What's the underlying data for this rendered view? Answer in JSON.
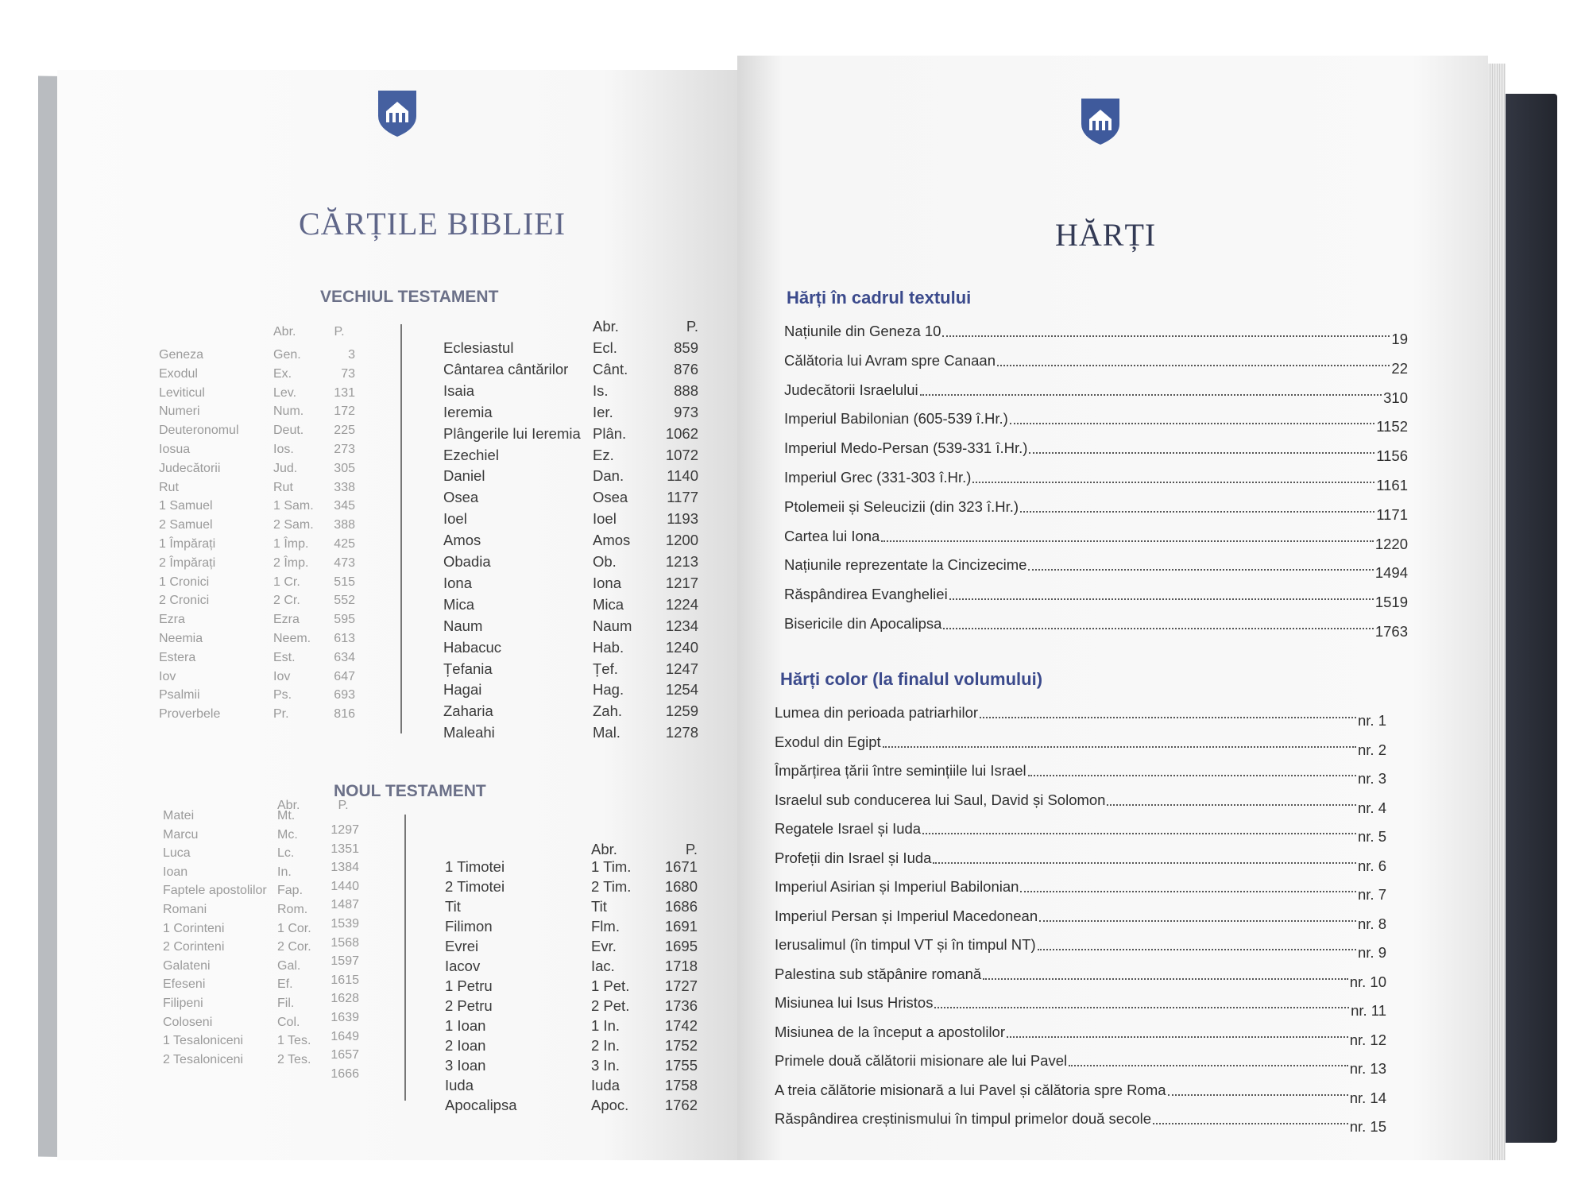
{
  "left_page": {
    "title": "CĂRȚILE BIBLIEI",
    "old_testament": {
      "heading": "VECHIUL TESTAMENT",
      "col_abbr": "Abr.",
      "col_page": "P.",
      "column1": [
        {
          "name": "Geneza",
          "abbr": "Gen.",
          "page": "3"
        },
        {
          "name": "Exodul",
          "abbr": "Ex.",
          "page": "73"
        },
        {
          "name": "Leviticul",
          "abbr": "Lev.",
          "page": "131"
        },
        {
          "name": "Numeri",
          "abbr": "Num.",
          "page": "172"
        },
        {
          "name": "Deuteronomul",
          "abbr": "Deut.",
          "page": "225"
        },
        {
          "name": "Iosua",
          "abbr": "Ios.",
          "page": "273"
        },
        {
          "name": "Judecătorii",
          "abbr": "Jud.",
          "page": "305"
        },
        {
          "name": "Rut",
          "abbr": "Rut",
          "page": "338"
        },
        {
          "name": "1 Samuel",
          "abbr": "1 Sam.",
          "page": "345"
        },
        {
          "name": "2 Samuel",
          "abbr": "2 Sam.",
          "page": "388"
        },
        {
          "name": "1 Împărați",
          "abbr": "1 Împ.",
          "page": "425"
        },
        {
          "name": "2 Împărați",
          "abbr": "2 Împ.",
          "page": "473"
        },
        {
          "name": "1 Cronici",
          "abbr": "1 Cr.",
          "page": "515"
        },
        {
          "name": "2 Cronici",
          "abbr": "2 Cr.",
          "page": "552"
        },
        {
          "name": "Ezra",
          "abbr": "Ezra",
          "page": "595"
        },
        {
          "name": "Neemia",
          "abbr": "Neem.",
          "page": "613"
        },
        {
          "name": "Estera",
          "abbr": "Est.",
          "page": "634"
        },
        {
          "name": "Iov",
          "abbr": "Iov",
          "page": "647"
        },
        {
          "name": "Psalmii",
          "abbr": "Ps.",
          "page": "693"
        },
        {
          "name": "Proverbele",
          "abbr": "Pr.",
          "page": "816"
        }
      ],
      "column2": [
        {
          "name": "Eclesiastul",
          "abbr": "Ecl.",
          "page": "859"
        },
        {
          "name": "Cântarea cântărilor",
          "abbr": "Cânt.",
          "page": "876"
        },
        {
          "name": "Isaia",
          "abbr": "Is.",
          "page": "888"
        },
        {
          "name": "Ieremia",
          "abbr": "Ier.",
          "page": "973"
        },
        {
          "name": "Plângerile lui Ieremia",
          "abbr": "Plân.",
          "page": "1062"
        },
        {
          "name": "Ezechiel",
          "abbr": "Ez.",
          "page": "1072"
        },
        {
          "name": "Daniel",
          "abbr": "Dan.",
          "page": "1140"
        },
        {
          "name": "Osea",
          "abbr": "Osea",
          "page": "1177"
        },
        {
          "name": "Ioel",
          "abbr": "Ioel",
          "page": "1193"
        },
        {
          "name": "Amos",
          "abbr": "Amos",
          "page": "1200"
        },
        {
          "name": "Obadia",
          "abbr": "Ob.",
          "page": "1213"
        },
        {
          "name": "Iona",
          "abbr": "Iona",
          "page": "1217"
        },
        {
          "name": "Mica",
          "abbr": "Mica",
          "page": "1224"
        },
        {
          "name": "Naum",
          "abbr": "Naum",
          "page": "1234"
        },
        {
          "name": "Habacuc",
          "abbr": "Hab.",
          "page": "1240"
        },
        {
          "name": "Țefania",
          "abbr": "Țef.",
          "page": "1247"
        },
        {
          "name": "Hagai",
          "abbr": "Hag.",
          "page": "1254"
        },
        {
          "name": "Zaharia",
          "abbr": "Zah.",
          "page": "1259"
        },
        {
          "name": "Maleahi",
          "abbr": "Mal.",
          "page": "1278"
        }
      ]
    },
    "new_testament": {
      "heading": "NOUL TESTAMENT",
      "col_abbr": "Abr.",
      "col_page": "P.",
      "column1": [
        {
          "name": "Matei",
          "abbr": "Mt.",
          "page": "1297"
        },
        {
          "name": "Marcu",
          "abbr": "Mc.",
          "page": "1351"
        },
        {
          "name": "Luca",
          "abbr": "Lc.",
          "page": "1384"
        },
        {
          "name": "Ioan",
          "abbr": "In.",
          "page": "1440"
        },
        {
          "name": "Faptele apostolilor",
          "abbr": "Fap.",
          "page": "1487"
        },
        {
          "name": "Romani",
          "abbr": "Rom.",
          "page": "1539"
        },
        {
          "name": "1 Corinteni",
          "abbr": "1 Cor.",
          "page": "1568"
        },
        {
          "name": "2 Corinteni",
          "abbr": "2 Cor.",
          "page": "1597"
        },
        {
          "name": "Galateni",
          "abbr": "Gal.",
          "page": "1615"
        },
        {
          "name": "Efeseni",
          "abbr": "Ef.",
          "page": "1628"
        },
        {
          "name": "Filipeni",
          "abbr": "Fil.",
          "page": "1639"
        },
        {
          "name": "Coloseni",
          "abbr": "Col.",
          "page": "1649"
        },
        {
          "name": "1 Tesaloniceni",
          "abbr": "1 Tes.",
          "page": "1657"
        },
        {
          "name": "2 Tesaloniceni",
          "abbr": "2 Tes.",
          "page": "1666"
        }
      ],
      "column2": [
        {
          "name": "1 Timotei",
          "abbr": "1 Tim.",
          "page": "1671"
        },
        {
          "name": "2 Timotei",
          "abbr": "2 Tim.",
          "page": "1680"
        },
        {
          "name": "Tit",
          "abbr": "Tit",
          "page": "1686"
        },
        {
          "name": "Filimon",
          "abbr": "Flm.",
          "page": "1691"
        },
        {
          "name": "Evrei",
          "abbr": "Evr.",
          "page": "1695"
        },
        {
          "name": "Iacov",
          "abbr": "Iac.",
          "page": "1718"
        },
        {
          "name": "1 Petru",
          "abbr": "1 Pet.",
          "page": "1727"
        },
        {
          "name": "2 Petru",
          "abbr": "2 Pet.",
          "page": "1736"
        },
        {
          "name": "1 Ioan",
          "abbr": "1 In.",
          "page": "1742"
        },
        {
          "name": "2 Ioan",
          "abbr": "2 In.",
          "page": "1752"
        },
        {
          "name": "3 Ioan",
          "abbr": "3 In.",
          "page": "1755"
        },
        {
          "name": "Iuda",
          "abbr": "Iuda",
          "page": "1758"
        },
        {
          "name": "Apocalipsa",
          "abbr": "Apoc.",
          "page": "1762"
        }
      ]
    }
  },
  "right_page": {
    "title": "HĂRȚI",
    "section1": {
      "heading": "Hărți în cadrul textului",
      "items": [
        {
          "label": "Națiunile din Geneza 10",
          "page": "19"
        },
        {
          "label": "Călătoria lui Avram spre Canaan",
          "page": "22"
        },
        {
          "label": "Judecătorii Israelului",
          "page": "310"
        },
        {
          "label": "Imperiul Babilonian (605-539 î.Hr.)",
          "page": "1152"
        },
        {
          "label": "Imperiul Medo-Persan (539-331 î.Hr.)",
          "page": "1156"
        },
        {
          "label": "Imperiul Grec (331-303 î.Hr.)",
          "page": "1161"
        },
        {
          "label": "Ptolemeii și Seleucizii (din 323 î.Hr.)",
          "page": "1171"
        },
        {
          "label": "Cartea lui Iona",
          "page": "1220"
        },
        {
          "label": "Națiunile reprezentate la Cincizecime",
          "page": "1494"
        },
        {
          "label": "Răspândirea Evangheliei",
          "page": "1519"
        },
        {
          "label": "Bisericile din Apocalipsa",
          "page": "1763"
        }
      ]
    },
    "section2": {
      "heading": "Hărți color (la finalul volumului)",
      "items": [
        {
          "label": "Lumea din perioada patriarhilor",
          "page": "nr. 1"
        },
        {
          "label": "Exodul din Egipt",
          "page": "nr. 2"
        },
        {
          "label": "Împărțirea țării între semințiile lui Israel",
          "page": "nr. 3"
        },
        {
          "label": "Israelul sub conducerea lui Saul, David și Solomon",
          "page": "nr. 4"
        },
        {
          "label": "Regatele Israel și Iuda",
          "page": "nr. 5"
        },
        {
          "label": "Profeții din Israel și Iuda",
          "page": "nr. 6"
        },
        {
          "label": "Imperiul Asirian și Imperiul Babilonian",
          "page": "nr. 7"
        },
        {
          "label": "Imperiul Persan și Imperiul Macedonean",
          "page": "nr. 8"
        },
        {
          "label": "Ierusalimul (în timpul VT și în timpul NT)",
          "page": "nr. 9"
        },
        {
          "label": "Palestina sub stăpânire romană",
          "page": "nr. 10"
        },
        {
          "label": "Misiunea lui Isus Hristos",
          "page": "nr. 11"
        },
        {
          "label": "Misiunea de la început a apostolilor",
          "page": "nr. 12"
        },
        {
          "label": "Primele două călătorii misionare ale lui Pavel",
          "page": "nr. 13"
        },
        {
          "label": "A treia călătorie misionară a lui Pavel și călătoria spre Roma",
          "page": "nr. 14"
        },
        {
          "label": "Răspândirea creștinismului în timpul primelor două secole",
          "page": "nr. 15"
        }
      ]
    }
  },
  "colors": {
    "heading_blue": "#3b4a8c",
    "logo_blue": "#3f5a9c",
    "cover": "#2b2f38"
  }
}
